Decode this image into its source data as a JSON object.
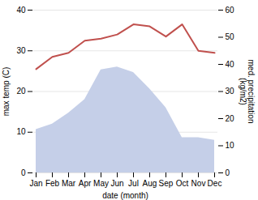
{
  "chart_data": {
    "type": "line",
    "xlabel": "date (month)",
    "ylabel": "max temp (C)",
    "y2label": "med. precipitation\n(kg/m2)",
    "categories": [
      "Jan",
      "Feb",
      "Mar",
      "Apr",
      "May",
      "Jun",
      "Jul",
      "Aug",
      "Sep",
      "Oct",
      "Nov",
      "Dec"
    ],
    "series": [
      {
        "type": "area",
        "axis": "y2",
        "color": "#c5cfe8",
        "values": [
          16,
          18,
          22,
          27,
          38,
          39,
          37,
          31,
          24,
          13,
          13,
          12
        ]
      },
      {
        "type": "line",
        "color": "#c0504d",
        "values": [
          25.5,
          28.5,
          29.5,
          32.5,
          33.0,
          34.0,
          36.5,
          36.0,
          33.5,
          36.5,
          30.0,
          29.5
        ]
      }
    ],
    "ylim": [
      0,
      40
    ],
    "yticks": [
      0,
      10,
      20,
      30,
      40
    ],
    "y2lim": [
      0,
      60
    ],
    "y2ticks": [
      0,
      10,
      20,
      30,
      40,
      50,
      60
    ],
    "grid": true
  }
}
